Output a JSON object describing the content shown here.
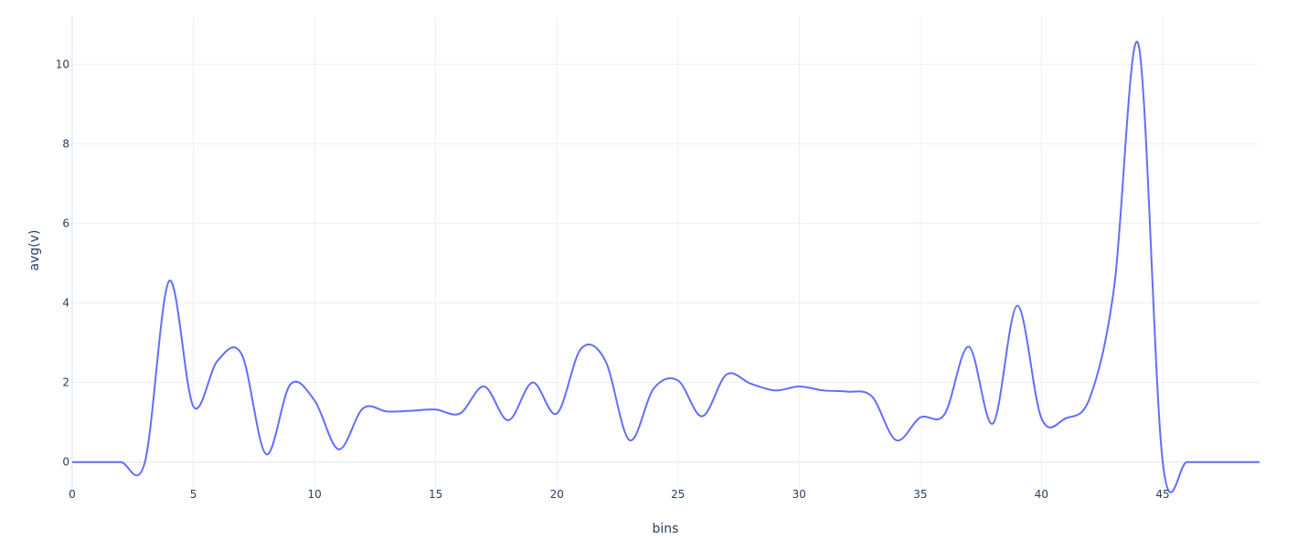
{
  "chart_data": {
    "type": "line",
    "xlabel": "bins",
    "ylabel": "avg(v)",
    "xlim": [
      0,
      49
    ],
    "ylim": [
      -0.65,
      11.2
    ],
    "xticks": [
      0,
      5,
      10,
      15,
      20,
      25,
      30,
      35,
      40,
      45
    ],
    "yticks": [
      0,
      2,
      4,
      6,
      8,
      10
    ],
    "grid": true,
    "line_shape": "spline",
    "color": "#636efa",
    "series": [
      {
        "x": [
          0,
          1,
          2,
          3,
          4,
          5,
          6,
          7,
          8,
          9,
          10,
          11,
          12,
          13,
          14,
          15,
          16,
          17,
          18,
          19,
          20,
          21,
          22,
          23,
          24,
          25,
          26,
          27,
          28,
          29,
          30,
          31,
          32,
          33,
          34,
          35,
          36,
          37,
          38,
          39,
          40,
          41,
          42,
          43,
          44,
          45,
          46,
          47,
          48,
          49
        ],
        "values": [
          0,
          0,
          0,
          0,
          4.55,
          1.4,
          2.55,
          2.7,
          0.2,
          1.95,
          1.55,
          0.32,
          1.35,
          1.27,
          1.29,
          1.32,
          1.22,
          1.9,
          1.05,
          2.0,
          1.22,
          2.85,
          2.55,
          0.55,
          1.85,
          2.05,
          1.15,
          2.2,
          1.97,
          1.8,
          1.9,
          1.8,
          1.77,
          1.65,
          0.55,
          1.12,
          1.2,
          2.9,
          0.97,
          3.93,
          1.1,
          1.1,
          1.62,
          4.4,
          10.5,
          0.02,
          0,
          0,
          0,
          0
        ]
      }
    ]
  }
}
